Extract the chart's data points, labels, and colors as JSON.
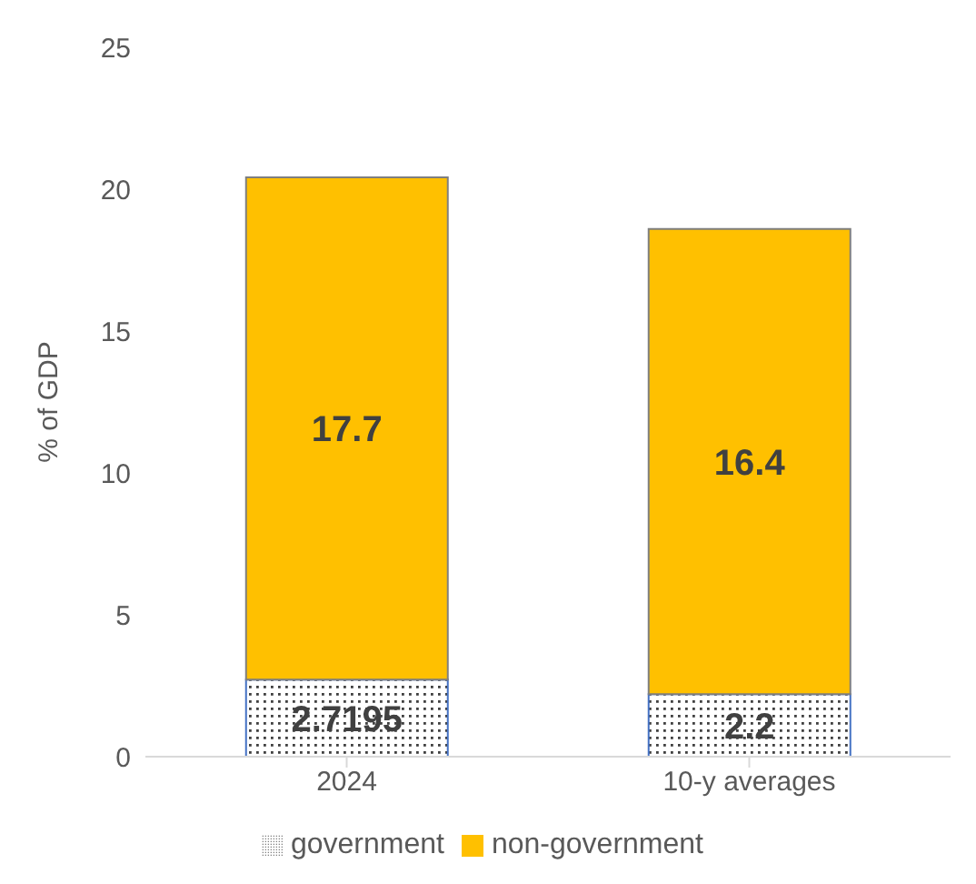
{
  "chart_data": {
    "type": "bar",
    "stacked": true,
    "categories": [
      "2024",
      "10-y averages"
    ],
    "ylabel": "% of GDP",
    "ylim": [
      0,
      25
    ],
    "yticks": [
      0,
      5,
      10,
      15,
      20,
      25
    ],
    "grid": false,
    "legend": "bottom",
    "data_labels": true,
    "series": [
      {
        "name": "government",
        "color": "#4472c4",
        "values": [
          2.7195,
          2.2
        ]
      },
      {
        "name": "non-government",
        "color": "#ffc000",
        "values": [
          17.7,
          16.4
        ]
      }
    ]
  }
}
